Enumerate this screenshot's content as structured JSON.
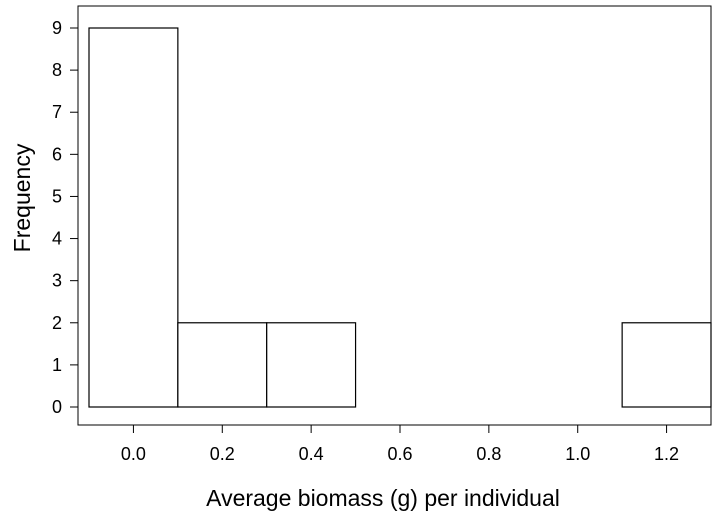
{
  "chart_data": {
    "type": "bar",
    "title": "",
    "xlabel": "Average biomass (g) per individual",
    "ylabel": "Frequency",
    "bins": [
      {
        "x0": -0.1,
        "x1": 0.1,
        "value": 9
      },
      {
        "x0": 0.1,
        "x1": 0.3,
        "value": 2
      },
      {
        "x0": 0.3,
        "x1": 0.5,
        "value": 2
      },
      {
        "x0": 0.5,
        "x1": 0.7,
        "value": 0
      },
      {
        "x0": 0.7,
        "x1": 0.9,
        "value": 0
      },
      {
        "x0": 0.9,
        "x1": 1.1,
        "value": 0
      },
      {
        "x0": 1.1,
        "x1": 1.3,
        "value": 2
      }
    ],
    "xticks": [
      "0.0",
      "0.2",
      "0.4",
      "0.6",
      "0.8",
      "1.0",
      "1.2"
    ],
    "yticks": [
      "0",
      "1",
      "2",
      "3",
      "4",
      "5",
      "6",
      "7",
      "8",
      "9"
    ],
    "xlim": [
      -0.1,
      1.3
    ],
    "ylim": [
      0,
      9
    ],
    "grid": false,
    "colors": {
      "bar_fill": "#ffffff",
      "bar_stroke": "#000000",
      "axis": "#000000"
    }
  }
}
